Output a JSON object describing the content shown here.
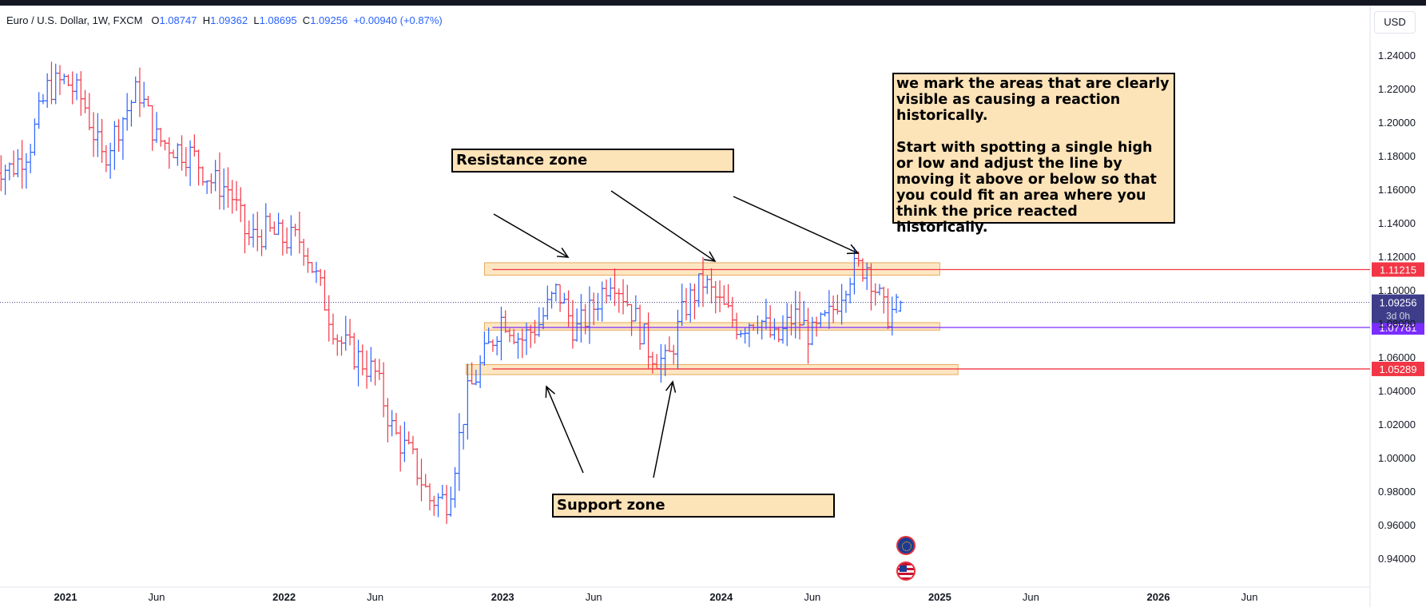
{
  "header": {
    "symbol": "Euro / U.S. Dollar, 1W, FXCM",
    "o_label": "O",
    "o": "1.08747",
    "h_label": "H",
    "h": "1.09362",
    "l_label": "L",
    "l": "1.08695",
    "c_label": "C",
    "c": "1.09256",
    "change": "+0.00940 (+0.87%)"
  },
  "currency_button": "USD",
  "annotations": {
    "resistance": "Resistance zone",
    "support": "Support zone",
    "explanation": "we mark the areas that are clearly visible as causing a reaction historically.\n\nStart with spotting a single high or low and adjust the line by moving it above or below so that you could fit an area where you think the price reacted historically."
  },
  "icons": [
    "eu-flag-icon",
    "us-flag-icon"
  ],
  "colors": {
    "up": "#2962ff",
    "down": "#f23645",
    "zone_fill": "#fde3b8",
    "resistance_line": "#f23645",
    "support_line": "#f23645",
    "middle_line": "#7b2dff",
    "current_price_bg": "#3d3d8a"
  },
  "chart_data": {
    "type": "ohlc",
    "title": "Euro / U.S. Dollar, 1W, FXCM",
    "x_range": [
      "2020-09",
      "2026-10"
    ],
    "ylim": [
      0.925,
      1.255
    ],
    "y_ticks": [
      "1.24000",
      "1.22000",
      "1.20000",
      "1.18000",
      "1.16000",
      "1.14000",
      "1.12000",
      "1.10000",
      "1.08000",
      "1.06000",
      "1.04000",
      "1.02000",
      "1.00000",
      "0.98000",
      "0.96000",
      "0.94000"
    ],
    "x_ticks": [
      {
        "label": "2021",
        "date": "2021-01"
      },
      {
        "label": "Jun",
        "date": "2021-06"
      },
      {
        "label": "2022",
        "date": "2022-01"
      },
      {
        "label": "Jun",
        "date": "2022-06"
      },
      {
        "label": "2023",
        "date": "2023-01"
      },
      {
        "label": "Jun",
        "date": "2023-06"
      },
      {
        "label": "2024",
        "date": "2024-01"
      },
      {
        "label": "Jun",
        "date": "2024-06"
      },
      {
        "label": "2025",
        "date": "2025-01"
      },
      {
        "label": "Jun",
        "date": "2025-06"
      },
      {
        "label": "2026",
        "date": "2026-01"
      },
      {
        "label": "Jun",
        "date": "2026-06"
      }
    ],
    "path": [
      [
        "2020-09",
        1.175
      ],
      [
        "2020-10",
        1.172
      ],
      [
        "2020-11",
        1.185
      ],
      [
        "2020-12",
        1.22
      ],
      [
        "2021-01",
        1.225
      ],
      [
        "2021-02",
        1.212
      ],
      [
        "2021-03",
        1.178
      ],
      [
        "2021-04",
        1.2
      ],
      [
        "2021-05",
        1.22
      ],
      [
        "2021-06",
        1.19
      ],
      [
        "2021-07",
        1.185
      ],
      [
        "2021-08",
        1.18
      ],
      [
        "2021-09",
        1.165
      ],
      [
        "2021-10",
        1.16
      ],
      [
        "2021-11",
        1.13
      ],
      [
        "2021-12",
        1.135
      ],
      [
        "2022-01",
        1.13
      ],
      [
        "2022-02",
        1.13
      ],
      [
        "2022-03",
        1.1
      ],
      [
        "2022-04",
        1.07
      ],
      [
        "2022-05",
        1.06
      ],
      [
        "2022-06",
        1.05
      ],
      [
        "2022-07",
        1.015
      ],
      [
        "2022-08",
        1.0
      ],
      [
        "2022-09",
        0.975
      ],
      [
        "2022-10",
        0.975
      ],
      [
        "2022-11",
        1.035
      ],
      [
        "2022-12",
        1.06
      ],
      [
        "2023-01",
        1.085
      ],
      [
        "2023-02",
        1.07
      ],
      [
        "2023-03",
        1.08
      ],
      [
        "2023-04",
        1.1
      ],
      [
        "2023-05",
        1.075
      ],
      [
        "2023-06",
        1.09
      ],
      [
        "2023-07",
        1.11
      ],
      [
        "2023-08",
        1.09
      ],
      [
        "2023-09",
        1.065
      ],
      [
        "2023-10",
        1.055
      ],
      [
        "2023-11",
        1.09
      ],
      [
        "2023-12",
        1.105
      ],
      [
        "2024-01",
        1.09
      ],
      [
        "2024-02",
        1.078
      ],
      [
        "2024-03",
        1.085
      ],
      [
        "2024-04",
        1.068
      ],
      [
        "2024-05",
        1.085
      ],
      [
        "2024-06",
        1.072
      ],
      [
        "2024-07",
        1.085
      ],
      [
        "2024-08",
        1.11
      ],
      [
        "2024-09",
        1.115
      ],
      [
        "2024-10",
        1.085
      ],
      [
        "2024-11",
        1.09
      ]
    ],
    "ohlc_source": "weekly bars interpolated along path",
    "last": {
      "o": 1.08747,
      "h": 1.09362,
      "l": 1.08695,
      "c": 1.09256
    },
    "horizontal_lines": [
      {
        "name": "resistance",
        "price": 1.11215,
        "label": "1.11215",
        "color": "#f23645"
      },
      {
        "name": "middle",
        "price": 1.07761,
        "label": "1.07761",
        "color": "#7b2dff"
      },
      {
        "name": "support",
        "price": 1.05289,
        "label": "1.05289",
        "color": "#f23645"
      }
    ],
    "current_price": {
      "label": "1.09256",
      "countdown": "3d 0h",
      "price": 1.09256
    },
    "zones": [
      {
        "name": "resistance-zone",
        "start": "2022-12",
        "end": "2025-01",
        "top": 1.1162,
        "bottom": 1.1088
      },
      {
        "name": "middle-zone",
        "start": "2022-12",
        "end": "2025-01",
        "top": 1.0805,
        "bottom": 1.076
      },
      {
        "name": "support-zone",
        "start": "2022-11",
        "end": "2025-02",
        "top": 1.0555,
        "bottom": 1.0495
      }
    ]
  }
}
